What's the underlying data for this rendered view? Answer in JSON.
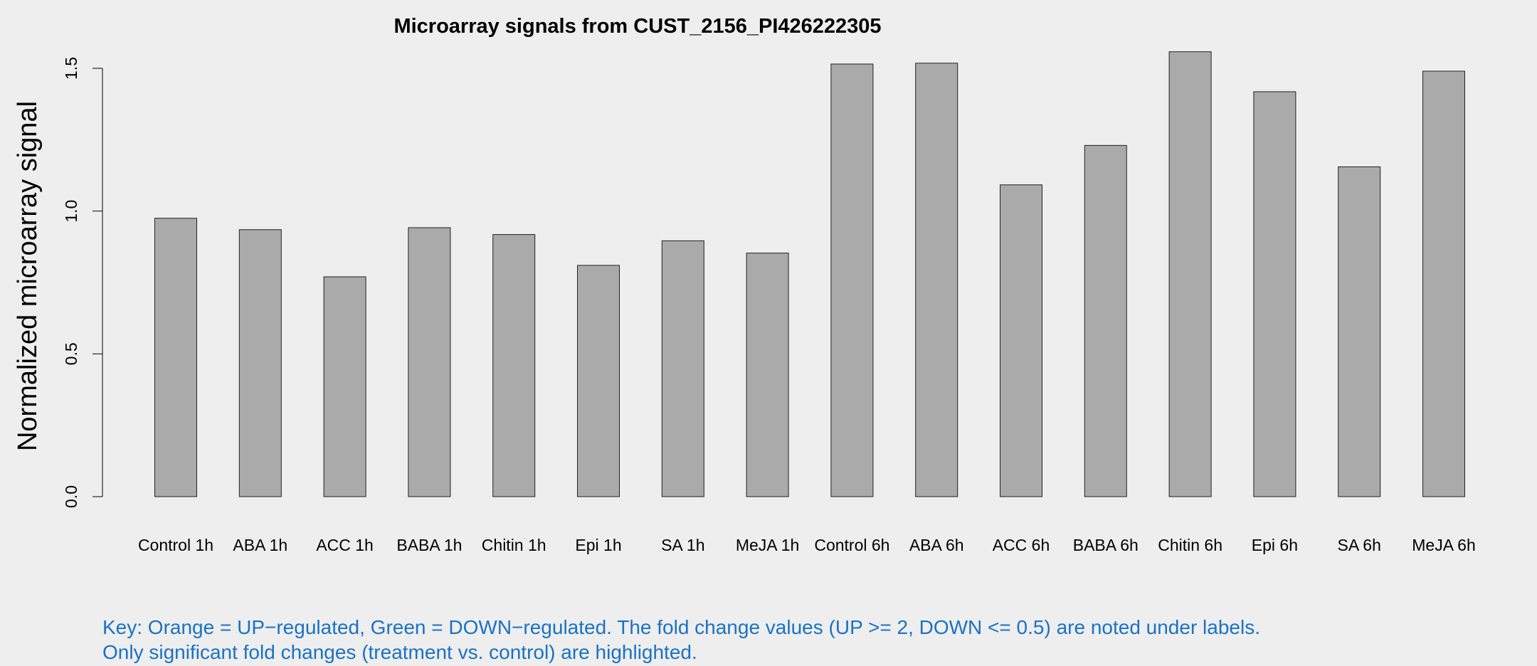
{
  "chart_data": {
    "type": "bar",
    "title": "Microarray signals from CUST_2156_PI426222305",
    "xlabel": "",
    "ylabel": "Normalized microarray signal",
    "ylim": [
      0,
      1.5
    ],
    "yticks": [
      "0.0",
      "0.5",
      "1.0",
      "1.5"
    ],
    "grid": false,
    "bar_color": "#aaaaaa",
    "categories": [
      "Control 1h",
      "ABA 1h",
      "ACC 1h",
      "BABA 1h",
      "Chitin 1h",
      "Epi 1h",
      "SA 1h",
      "MeJA 1h",
      "Control 6h",
      "ABA 6h",
      "ACC 6h",
      "BABA 6h",
      "Chitin 6h",
      "Epi 6h",
      "SA 6h",
      "MeJA 6h"
    ],
    "values": [
      0.975,
      0.935,
      0.77,
      0.942,
      0.918,
      0.81,
      0.896,
      0.853,
      1.515,
      1.518,
      1.092,
      1.23,
      1.558,
      1.418,
      1.155,
      1.49
    ]
  },
  "key": {
    "line1": "Key: Orange = UP−regulated, Green = DOWN−regulated. The fold change values (UP >= 2, DOWN <= 0.5) are noted under labels.",
    "line2": "Only significant fold changes (treatment vs. control) are highlighted.",
    "color": "#1a72c4"
  }
}
